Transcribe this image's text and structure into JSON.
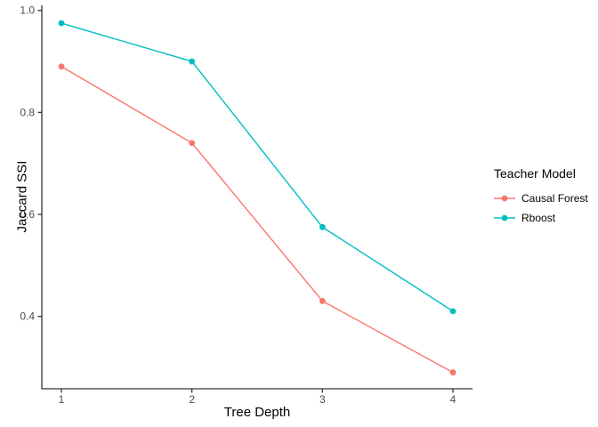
{
  "figure": {
    "background_color": "#FFFFFF"
  },
  "chart_data": {
    "type": "line",
    "title": "",
    "xlabel": "Tree Depth",
    "ylabel": "Jaccard SSI",
    "x": [
      1,
      2,
      3,
      4
    ],
    "x_tick_labels": [
      "1",
      "2",
      "3",
      "4"
    ],
    "y_ticks": [
      0.4,
      0.6,
      0.8,
      1.0
    ],
    "y_tick_labels": [
      "0.4",
      "0.6",
      "0.8",
      "1.0"
    ],
    "xlim": [
      0.85,
      4.15
    ],
    "ylim": [
      0.258,
      1.01
    ],
    "grid": false,
    "legend_position": "right",
    "legend_title": "Teacher Model",
    "series": [
      {
        "name": "Causal Forest",
        "color": "#F8766D",
        "values": [
          0.89,
          0.74,
          0.43,
          0.29
        ]
      },
      {
        "name": "Rboost",
        "color": "#00BFC4",
        "values": [
          0.975,
          0.9,
          0.575,
          0.41
        ]
      }
    ]
  },
  "style": {
    "axis_color": "#333333",
    "tick_label_color": "#4D4D4D",
    "title_color": "#000000",
    "line_width": 1.4,
    "point_radius": 3.4
  }
}
